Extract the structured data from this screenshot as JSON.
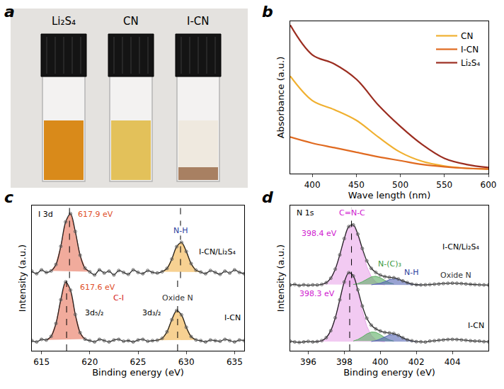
{
  "photo": {
    "panel": "a",
    "vials": [
      {
        "label": "Li₂S₄",
        "color": "#d98a1a"
      },
      {
        "label": "CN",
        "color": "#e3c15a"
      },
      {
        "label": "I-CN",
        "color": "#efe9df"
      }
    ]
  },
  "chart_data": [
    {
      "panel": "b",
      "type": "line",
      "x_label": "Wave length (nm)",
      "y_label": "Absorbance (a.u.)",
      "xlim": [
        375,
        600
      ],
      "xticks": [
        400,
        450,
        500,
        550,
        600
      ],
      "ylim": [
        0,
        1
      ],
      "tick_labels": "x",
      "legend": "upper right",
      "series": [
        {
          "name": "CN",
          "color": "#f0b030",
          "x": [
            375,
            400,
            425,
            450,
            475,
            500,
            525,
            550,
            575,
            600
          ],
          "values": [
            0.64,
            0.48,
            0.42,
            0.35,
            0.24,
            0.14,
            0.08,
            0.05,
            0.035,
            0.03
          ]
        },
        {
          "name": "I-CN",
          "color": "#e06a20",
          "x": [
            375,
            400,
            425,
            450,
            475,
            500,
            525,
            550,
            575,
            600
          ],
          "values": [
            0.24,
            0.2,
            0.17,
            0.14,
            0.11,
            0.085,
            0.06,
            0.045,
            0.035,
            0.03
          ]
        },
        {
          "name": "Li₂S₄",
          "color": "#9b2d20",
          "x": [
            375,
            400,
            425,
            450,
            475,
            500,
            525,
            550,
            575,
            600
          ],
          "values": [
            0.975,
            0.78,
            0.72,
            0.62,
            0.45,
            0.31,
            0.19,
            0.1,
            0.06,
            0.04
          ]
        }
      ]
    },
    {
      "panel": "c",
      "type": "scatter",
      "x_label": "Binding energy (eV)",
      "y_label": "Intensity (a.u.)",
      "xlim": [
        614,
        636
      ],
      "xticks": [
        615,
        620,
        625,
        630,
        635
      ],
      "ylim": [
        0,
        1.15
      ],
      "tick_labels": "x",
      "peak_positions": [
        617.6,
        617.9,
        629.1,
        629.4
      ],
      "series": [
        {
          "type": "area",
          "color": "#e8735a",
          "x": [
            615.5,
            616,
            616.5,
            617,
            617.5,
            618,
            618.5,
            619,
            619.5
          ],
          "values": [
            0.085,
            0.114,
            0.216,
            0.404,
            0.545,
            0.48,
            0.287,
            0.143,
            0.092
          ]
        },
        {
          "type": "area",
          "color": "#f2b24a",
          "x": [
            627,
            627.5,
            628,
            628.5,
            629,
            629.5,
            630,
            630.5,
            631
          ],
          "values": [
            0.083,
            0.098,
            0.15,
            0.246,
            0.318,
            0.284,
            0.186,
            0.112,
            0.086
          ]
        },
        {
          "type": "area",
          "color": "#e8735a",
          "x": [
            616,
            616.5,
            617,
            617.5,
            618,
            618.5,
            619,
            619.5,
            620
          ],
          "values": [
            0.632,
            0.683,
            0.827,
            1.02,
            1.085,
            0.944,
            0.756,
            0.654,
            0.625
          ]
        },
        {
          "type": "area",
          "color": "#f2b24a",
          "x": [
            627.5,
            628,
            628.5,
            629,
            629.5,
            630,
            630.5,
            631,
            631.5
          ],
          "values": [
            0.626,
            0.652,
            0.726,
            0.824,
            0.858,
            0.786,
            0.69,
            0.638,
            0.623
          ]
        },
        {
          "type": "scatter",
          "marker": "circle-open",
          "color": "#222222",
          "x": [
            614,
            614.5,
            615,
            615.5,
            616,
            616.5,
            617,
            617.5,
            618,
            618.5,
            619,
            619.5,
            620,
            620.5,
            621,
            621.5,
            622,
            622.5,
            623,
            623.5,
            624,
            624.5,
            625,
            625.5,
            626,
            626.5,
            627,
            627.5,
            628,
            628.5,
            629,
            629.5,
            630,
            630.5,
            631,
            631.5,
            632,
            632.5,
            633,
            633.5,
            634,
            634.5,
            635,
            635.5,
            636
          ],
          "values": [
            0.08,
            0.07,
            0.09,
            0.085,
            0.114,
            0.216,
            0.404,
            0.545,
            0.48,
            0.287,
            0.143,
            0.092,
            0.08,
            0.07,
            0.09,
            0.08,
            0.07,
            0.085,
            0.09,
            0.075,
            0.08,
            0.07,
            0.085,
            0.09,
            0.075,
            0.08,
            0.083,
            0.098,
            0.15,
            0.246,
            0.318,
            0.284,
            0.186,
            0.112,
            0.086,
            0.08,
            0.07,
            0.085,
            0.08,
            0.075,
            0.09,
            0.08,
            0.07,
            0.085,
            0.08
          ]
        },
        {
          "type": "scatter",
          "marker": "circle-open",
          "color": "#222222",
          "x": [
            614,
            614.5,
            615,
            615.5,
            616,
            616.5,
            617,
            617.5,
            618,
            618.5,
            619,
            619.5,
            620,
            620.5,
            621,
            621.5,
            622,
            622.5,
            623,
            623.5,
            624,
            624.5,
            625,
            625.5,
            626,
            626.5,
            627,
            627.5,
            628,
            628.5,
            629,
            629.5,
            630,
            630.5,
            631,
            631.5,
            632,
            632.5,
            633,
            633.5,
            634,
            634.5,
            635,
            635.5,
            636
          ],
          "values": [
            0.63,
            0.61,
            0.64,
            0.62,
            0.632,
            0.683,
            0.827,
            1.02,
            1.085,
            0.944,
            0.756,
            0.654,
            0.625,
            0.6,
            0.64,
            0.615,
            0.63,
            0.6,
            0.635,
            0.62,
            0.605,
            0.64,
            0.62,
            0.61,
            0.635,
            0.62,
            0.615,
            0.626,
            0.652,
            0.726,
            0.824,
            0.858,
            0.786,
            0.69,
            0.638,
            0.623,
            0.61,
            0.635,
            0.62,
            0.605,
            0.63,
            0.615,
            0.64,
            0.62,
            0.61
          ]
        }
      ],
      "annotations": [
        {
          "text": "I 3d",
          "x": 615.4,
          "y": 1.08,
          "color": "#000000"
        },
        {
          "text": "617.9 eV",
          "x": 620.6,
          "y": 1.08,
          "color": "#e0502a"
        },
        {
          "text": "617.6 eV",
          "x": 620.8,
          "y": 0.5,
          "color": "#e0502a"
        },
        {
          "text": "C-I",
          "x": 623,
          "y": 0.42,
          "color": "#d42020"
        },
        {
          "text": "3d₅/₂",
          "x": 620.5,
          "y": 0.3,
          "color": "#000000"
        },
        {
          "text": "3d₃/₂",
          "x": 626.4,
          "y": 0.3,
          "color": "#000000"
        },
        {
          "text": "N-H",
          "x": 629.4,
          "y": 0.95,
          "color": "#2c3e9e"
        },
        {
          "text": "Oxide N",
          "x": 629.1,
          "y": 0.42,
          "color": "#333333"
        },
        {
          "text": "I-CN/Li₂S₄",
          "x": 633.2,
          "y": 0.78,
          "color": "#000000"
        },
        {
          "text": "I-CN",
          "x": 634.8,
          "y": 0.26,
          "color": "#000000"
        }
      ]
    },
    {
      "panel": "d",
      "type": "scatter",
      "x_label": "Binding energy (eV)",
      "y_label": "Intensity (a.u.)",
      "xlim": [
        395,
        406
      ],
      "xticks": [
        396,
        398,
        400,
        402,
        404
      ],
      "ylim": [
        0,
        1.15
      ],
      "tick_labels": "x",
      "peak_positions": [
        398.3,
        398.4
      ],
      "series": [
        {
          "type": "area",
          "color": "#e9a7ea",
          "x": [
            396.5,
            396.75,
            397,
            397.25,
            397.5,
            397.75,
            398,
            398.25,
            398.5,
            398.75,
            399,
            399.25,
            399.5,
            399.75,
            400,
            400.25
          ],
          "values": [
            0.073,
            0.08,
            0.104,
            0.159,
            0.261,
            0.403,
            0.544,
            0.618,
            0.585,
            0.464,
            0.315,
            0.194,
            0.121,
            0.087,
            0.075,
            0.071
          ]
        },
        {
          "type": "area",
          "color": "#5cae62",
          "x": [
            398.5,
            398.75,
            399,
            399.25,
            399.5,
            399.75,
            400,
            400.25,
            400.5,
            400.75
          ],
          "values": [
            0.077,
            0.089,
            0.109,
            0.133,
            0.148,
            0.146,
            0.128,
            0.104,
            0.086,
            0.076
          ]
        },
        {
          "type": "area",
          "color": "#5565b5",
          "x": [
            399.5,
            399.75,
            400,
            400.25,
            400.5,
            400.75,
            401,
            401.25,
            401.5,
            401.75,
            402
          ],
          "values": [
            0.073,
            0.08,
            0.093,
            0.11,
            0.125,
            0.13,
            0.12,
            0.103,
            0.087,
            0.077,
            0.072
          ]
        },
        {
          "type": "area",
          "color": "#e9a7ea",
          "x": [
            396.75,
            397,
            397.25,
            397.5,
            397.75,
            398,
            398.25,
            398.5,
            398.75,
            399,
            399.25,
            399.5,
            399.75,
            400,
            400.25
          ],
          "values": [
            0.525,
            0.539,
            0.574,
            0.646,
            0.759,
            0.888,
            0.982,
            0.992,
            0.912,
            0.784,
            0.665,
            0.585,
            0.544,
            0.527,
            0.522
          ]
        },
        {
          "type": "area",
          "color": "#5cae62",
          "x": [
            398.5,
            398.75,
            399,
            399.25,
            399.5,
            399.75,
            400,
            400.25,
            400.5,
            400.75
          ],
          "values": [
            0.524,
            0.531,
            0.546,
            0.567,
            0.585,
            0.59,
            0.578,
            0.558,
            0.539,
            0.528
          ]
        },
        {
          "type": "area",
          "color": "#5565b5",
          "x": [
            399.5,
            399.75,
            400,
            400.25,
            400.5,
            400.75,
            401,
            401.25,
            401.5,
            401.75,
            402,
            402.25
          ],
          "values": [
            0.522,
            0.526,
            0.534,
            0.547,
            0.562,
            0.57,
            0.566,
            0.553,
            0.539,
            0.528,
            0.523,
            0.521
          ]
        },
        {
          "type": "scatter",
          "marker": "circle-open",
          "color": "#222222",
          "x": [
            395,
            395.25,
            395.5,
            395.75,
            396,
            396.25,
            396.5,
            396.75,
            397,
            397.25,
            397.5,
            397.75,
            398,
            398.25,
            398.5,
            398.75,
            399,
            399.25,
            399.5,
            399.75,
            400,
            400.25,
            400.5,
            400.75,
            401,
            401.25,
            401.5,
            401.75,
            402,
            402.25,
            402.5,
            402.75,
            403,
            403.25,
            403.5,
            403.75,
            404,
            404.25,
            404.5,
            404.75,
            405,
            405.25,
            405.5,
            405.75,
            406
          ],
          "values": [
            0.075,
            0.07,
            0.066,
            0.07,
            0.074,
            0.07,
            0.073,
            0.08,
            0.104,
            0.159,
            0.261,
            0.403,
            0.544,
            0.618,
            0.592,
            0.483,
            0.354,
            0.258,
            0.202,
            0.173,
            0.156,
            0.145,
            0.141,
            0.136,
            0.122,
            0.103,
            0.087,
            0.079,
            0.072,
            0.071,
            0.069,
            0.076,
            0.079,
            0.083,
            0.086,
            0.089,
            0.09,
            0.089,
            0.086,
            0.083,
            0.079,
            0.076,
            0.076,
            0.072,
            0.071
          ]
        },
        {
          "type": "scatter",
          "marker": "circle-open",
          "color": "#222222",
          "x": [
            395,
            395.25,
            395.5,
            395.75,
            396,
            396.25,
            396.5,
            396.75,
            397,
            397.25,
            397.5,
            397.75,
            398,
            398.25,
            398.5,
            398.75,
            399,
            399.25,
            399.5,
            399.75,
            400,
            400.25,
            400.5,
            400.75,
            401,
            401.25,
            401.5,
            401.75,
            402,
            402.25,
            402.5,
            402.75,
            403,
            403.25,
            403.5,
            403.75,
            404,
            404.25,
            404.5,
            404.75,
            405,
            405.25,
            405.5,
            405.75,
            406
          ],
          "values": [
            0.52,
            0.525,
            0.516,
            0.522,
            0.518,
            0.521,
            0.52,
            0.525,
            0.539,
            0.574,
            0.646,
            0.759,
            0.888,
            0.983,
            0.996,
            0.923,
            0.81,
            0.712,
            0.652,
            0.62,
            0.599,
            0.587,
            0.581,
            0.578,
            0.568,
            0.553,
            0.539,
            0.528,
            0.523,
            0.521,
            0.522,
            0.524,
            0.527,
            0.529,
            0.532,
            0.534,
            0.535,
            0.534,
            0.532,
            0.529,
            0.526,
            0.524,
            0.522,
            0.521,
            0.52
          ]
        }
      ],
      "annotations": [
        {
          "text": "N 1s",
          "x": 395.85,
          "y": 1.09,
          "color": "#000000"
        },
        {
          "text": "C=N-C",
          "x": 398.45,
          "y": 1.09,
          "color": "#d020d0"
        },
        {
          "text": "398.4 eV",
          "x": 396.6,
          "y": 0.93,
          "color": "#d020d0"
        },
        {
          "text": "398.3 eV",
          "x": 396.5,
          "y": 0.45,
          "color": "#d020d0"
        },
        {
          "text": "N-(C)₃",
          "x": 400.5,
          "y": 0.69,
          "color": "#3a9a40"
        },
        {
          "text": "N-H",
          "x": 401.7,
          "y": 0.62,
          "color": "#2c3e9e"
        },
        {
          "text": "Oxide N",
          "x": 404.2,
          "y": 0.6,
          "color": "#333333"
        },
        {
          "text": "I-CN/Li₂S₄",
          "x": 404.45,
          "y": 0.82,
          "color": "#000000"
        },
        {
          "text": "I-CN",
          "x": 405.3,
          "y": 0.2,
          "color": "#000000"
        }
      ]
    }
  ]
}
